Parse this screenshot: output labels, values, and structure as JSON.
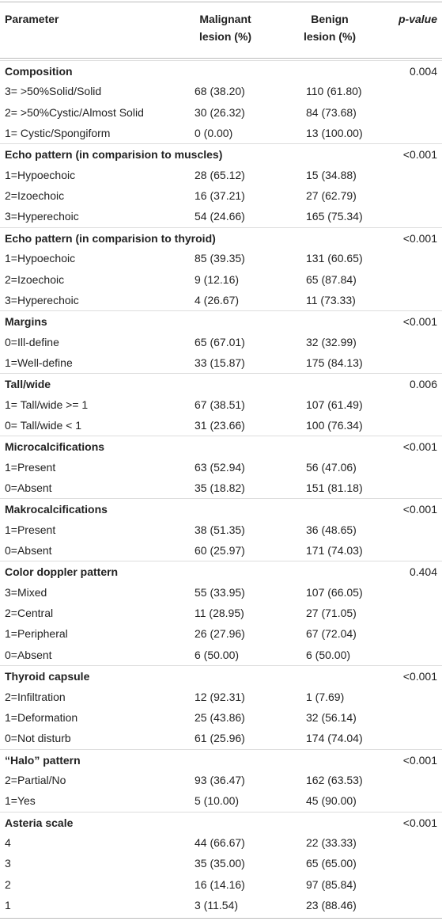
{
  "table": {
    "header": {
      "parameter": "Parameter",
      "malignant": [
        "Malignant",
        "lesion (%)"
      ],
      "benign": [
        "Benign",
        "lesion (%)"
      ],
      "p_value": "p-value"
    },
    "sections": [
      {
        "title": "Composition",
        "p": "0.004",
        "rows": [
          [
            "3= >50%Solid/Solid",
            "68 (38.20)",
            "110 (61.80)"
          ],
          [
            "2= >50%Cystic/Almost Solid",
            "30 (26.32)",
            "84 (73.68)"
          ],
          [
            "1= Cystic/Spongiform",
            "0 (0.00)",
            "13 (100.00)"
          ]
        ]
      },
      {
        "title": "Echo pattern (in comparision to muscles)",
        "p": "<0.001",
        "rows": [
          [
            "1=Hypoechoic",
            "28 (65.12)",
            "15 (34.88)"
          ],
          [
            "2=Izoechoic",
            "16 (37.21)",
            "27 (62.79)"
          ],
          [
            "3=Hyperechoic",
            "54 (24.66)",
            "165 (75.34)"
          ]
        ]
      },
      {
        "title": "Echo pattern (in comparision to thyroid)",
        "p": "<0.001",
        "rows": [
          [
            "1=Hypoechoic",
            "85 (39.35)",
            "131 (60.65)"
          ],
          [
            "2=Izoechoic",
            "9 (12.16)",
            "65 (87.84)"
          ],
          [
            "3=Hyperechoic",
            "4 (26.67)",
            "11 (73.33)"
          ]
        ]
      },
      {
        "title": "Margins",
        "p": "<0.001",
        "rows": [
          [
            "0=Ill-define",
            "65 (67.01)",
            "32 (32.99)"
          ],
          [
            "1=Well-define",
            "33 (15.87)",
            "175 (84.13)"
          ]
        ]
      },
      {
        "title": "Tall/wide",
        "p": "0.006",
        "rows": [
          [
            "1= Tall/wide >= 1",
            "67 (38.51)",
            "107 (61.49)"
          ],
          [
            "0= Tall/wide < 1",
            "31 (23.66)",
            "100 (76.34)"
          ]
        ]
      },
      {
        "title": "Microcalcifications",
        "p": "<0.001",
        "rows": [
          [
            "1=Present",
            "63 (52.94)",
            "56 (47.06)"
          ],
          [
            "0=Absent",
            "35 (18.82)",
            "151 (81.18)"
          ]
        ]
      },
      {
        "title": "Makrocalcifications",
        "p": "<0.001",
        "rows": [
          [
            "1=Present",
            "38 (51.35)",
            "36 (48.65)"
          ],
          [
            "0=Absent",
            "60 (25.97)",
            "171 (74.03)"
          ]
        ]
      },
      {
        "title": "Color doppler pattern",
        "p": "0.404",
        "rows": [
          [
            "3=Mixed",
            "55 (33.95)",
            "107 (66.05)"
          ],
          [
            "2=Central",
            "11 (28.95)",
            "27 (71.05)"
          ],
          [
            "1=Peripheral",
            "26 (27.96)",
            "67 (72.04)"
          ],
          [
            "0=Absent",
            "6 (50.00)",
            "6 (50.00)"
          ]
        ]
      },
      {
        "title": "Thyroid capsule",
        "p": "<0.001",
        "rows": [
          [
            "2=Infiltration",
            "12 (92.31)",
            "1 (7.69)"
          ],
          [
            "1=Deformation",
            "25 (43.86)",
            "32 (56.14)"
          ],
          [
            "0=Not disturb",
            "61 (25.96)",
            "174 (74.04)"
          ]
        ]
      },
      {
        "title": "“Halo” pattern",
        "p": "<0.001",
        "rows": [
          [
            "2=Partial/No",
            "93 (36.47)",
            "162 (63.53)"
          ],
          [
            "1=Yes",
            "5 (10.00)",
            "45 (90.00)"
          ]
        ]
      },
      {
        "title": "Asteria scale",
        "p": "<0.001",
        "rows": [
          [
            "4",
            "44 (66.67)",
            "22 (33.33)"
          ],
          [
            "3",
            "35 (35.00)",
            "65 (65.00)"
          ],
          [
            "2",
            "16 (14.16)",
            "97 (85.84)"
          ],
          [
            "1",
            "3 (11.54)",
            "23 (88.46)"
          ]
        ]
      }
    ]
  }
}
